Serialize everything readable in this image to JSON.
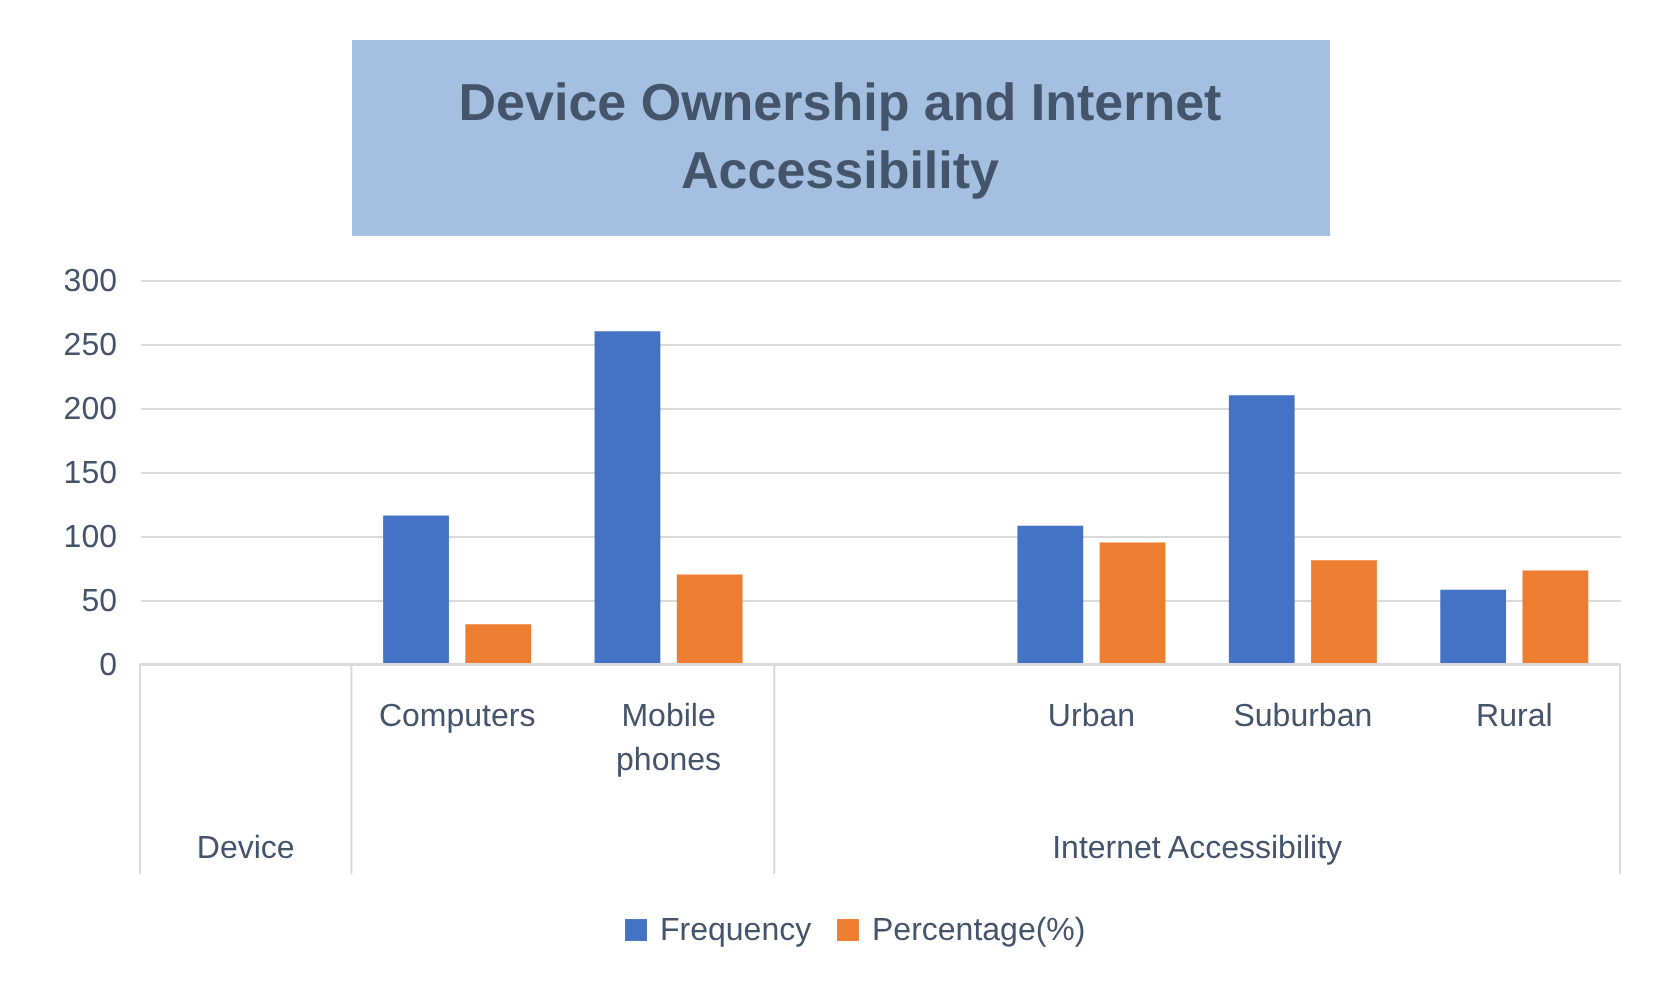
{
  "chart_data": {
    "type": "bar",
    "title": "Device Ownership and Internet Accessibility",
    "categories": [
      null,
      "Computers",
      "Mobile phones",
      null,
      "Urban",
      "Suburban",
      "Rural"
    ],
    "series": [
      {
        "name": "Frequency",
        "color": "#4472c4",
        "values": [
          null,
          116,
          260,
          null,
          108,
          210,
          58
        ]
      },
      {
        "name": "Percentage(%)",
        "color": "#ed7d31",
        "values": [
          null,
          31,
          70,
          null,
          95,
          81,
          73
        ]
      }
    ],
    "annotations": [
      "Device",
      "Internet Accessibility"
    ],
    "ylim": [
      0,
      300
    ],
    "yticks": [
      0,
      50,
      100,
      150,
      200,
      250,
      300
    ],
    "grid": true,
    "legend": "bottom"
  }
}
